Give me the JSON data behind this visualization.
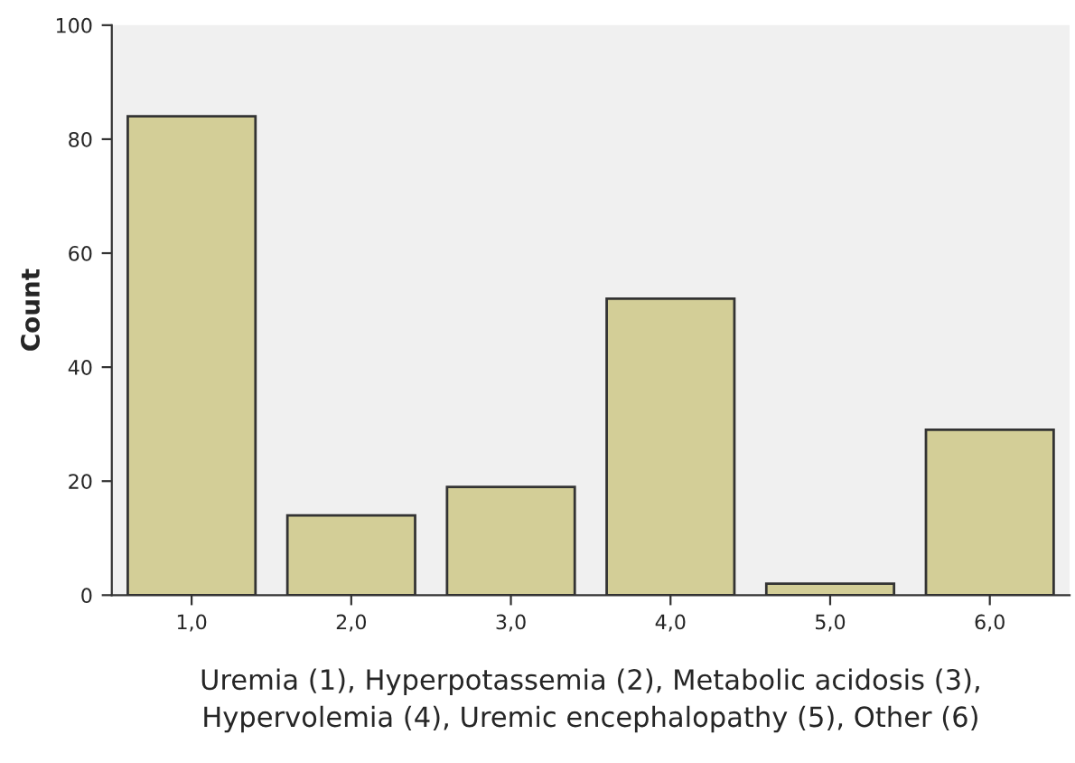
{
  "chart_data": {
    "type": "bar",
    "categories": [
      "1,0",
      "2,0",
      "3,0",
      "4,0",
      "5,0",
      "6,0"
    ],
    "values": [
      84,
      14,
      19,
      52,
      2,
      29
    ],
    "color": "#d3ce97",
    "ylabel": "Count",
    "xlabel": "Uremia (1), Hyperpotassemia (2), Metabolic acidosis (3),\nHypervolemia (4), Uremic encephalopathy (5), Other (6)",
    "ylim": [
      0,
      100
    ],
    "yticks": [
      0,
      20,
      40,
      60,
      80,
      100
    ],
    "grid": false,
    "legend": false
  }
}
